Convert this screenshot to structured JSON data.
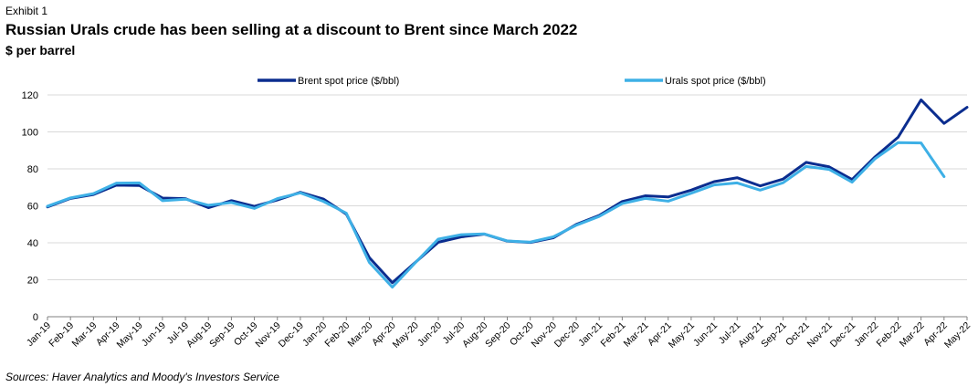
{
  "header": {
    "exhibit": "Exhibit 1",
    "title": "Russian Urals crude has been selling at a discount to Brent since March 2022",
    "unit": "$ per barrel"
  },
  "footer": {
    "source": "Sources: Haver Analytics and Moody's Investors Service"
  },
  "chart_data": {
    "type": "line",
    "title": "Russian Urals crude has been selling at a discount to Brent since March 2022",
    "ylabel": "$ per barrel",
    "xlabel": "",
    "ylim": [
      0,
      120
    ],
    "yticks": [
      0,
      20,
      40,
      60,
      80,
      100,
      120
    ],
    "grid": "horizontal",
    "legend_position": "top",
    "categories": [
      "Jan-19",
      "Feb-19",
      "Mar-19",
      "Apr-19",
      "May-19",
      "Jun-19",
      "Jul-19",
      "Aug-19",
      "Sep-19",
      "Oct-19",
      "Nov-19",
      "Dec-19",
      "Jan-20",
      "Feb-20",
      "Mar-20",
      "Apr-20",
      "May-20",
      "Jun-20",
      "Jul-20",
      "Aug-20",
      "Sep-20",
      "Oct-20",
      "Nov-20",
      "Dec-20",
      "Jan-21",
      "Feb-21",
      "Mar-21",
      "Apr-21",
      "May-21",
      "Jun-21",
      "Jul-21",
      "Aug-21",
      "Sep-21",
      "Oct-21",
      "Nov-21",
      "Dec-21",
      "Jan-22",
      "Feb-22",
      "Mar-22",
      "Apr-22",
      "May-22"
    ],
    "series": [
      {
        "name": "Brent spot price ($/bbl)",
        "color": "#0b2d8f",
        "values": [
          59.4,
          64.0,
          66.1,
          71.2,
          71.0,
          64.2,
          63.9,
          59.0,
          62.8,
          59.7,
          63.2,
          67.3,
          63.7,
          55.5,
          32.0,
          18.4,
          29.4,
          40.3,
          43.2,
          44.7,
          40.9,
          40.2,
          42.7,
          49.9,
          54.8,
          62.3,
          65.4,
          64.8,
          68.5,
          73.1,
          75.2,
          70.8,
          74.5,
          83.5,
          81.1,
          74.2,
          86.5,
          97.1,
          117.3,
          104.6,
          113.3
        ]
      },
      {
        "name": "Urals spot price ($/bbl)",
        "color": "#3eb0e6",
        "values": [
          59.8,
          64.3,
          66.6,
          72.3,
          72.4,
          62.8,
          63.6,
          60.3,
          61.8,
          58.6,
          63.9,
          67.0,
          62.4,
          56.0,
          29.4,
          16.0,
          29.2,
          42.0,
          44.4,
          44.8,
          41.0,
          40.4,
          43.2,
          49.5,
          54.3,
          61.2,
          64.0,
          62.5,
          66.8,
          71.3,
          72.4,
          68.5,
          72.5,
          81.3,
          79.7,
          72.8,
          85.5,
          94.2,
          94.0,
          75.8,
          null
        ]
      }
    ]
  }
}
